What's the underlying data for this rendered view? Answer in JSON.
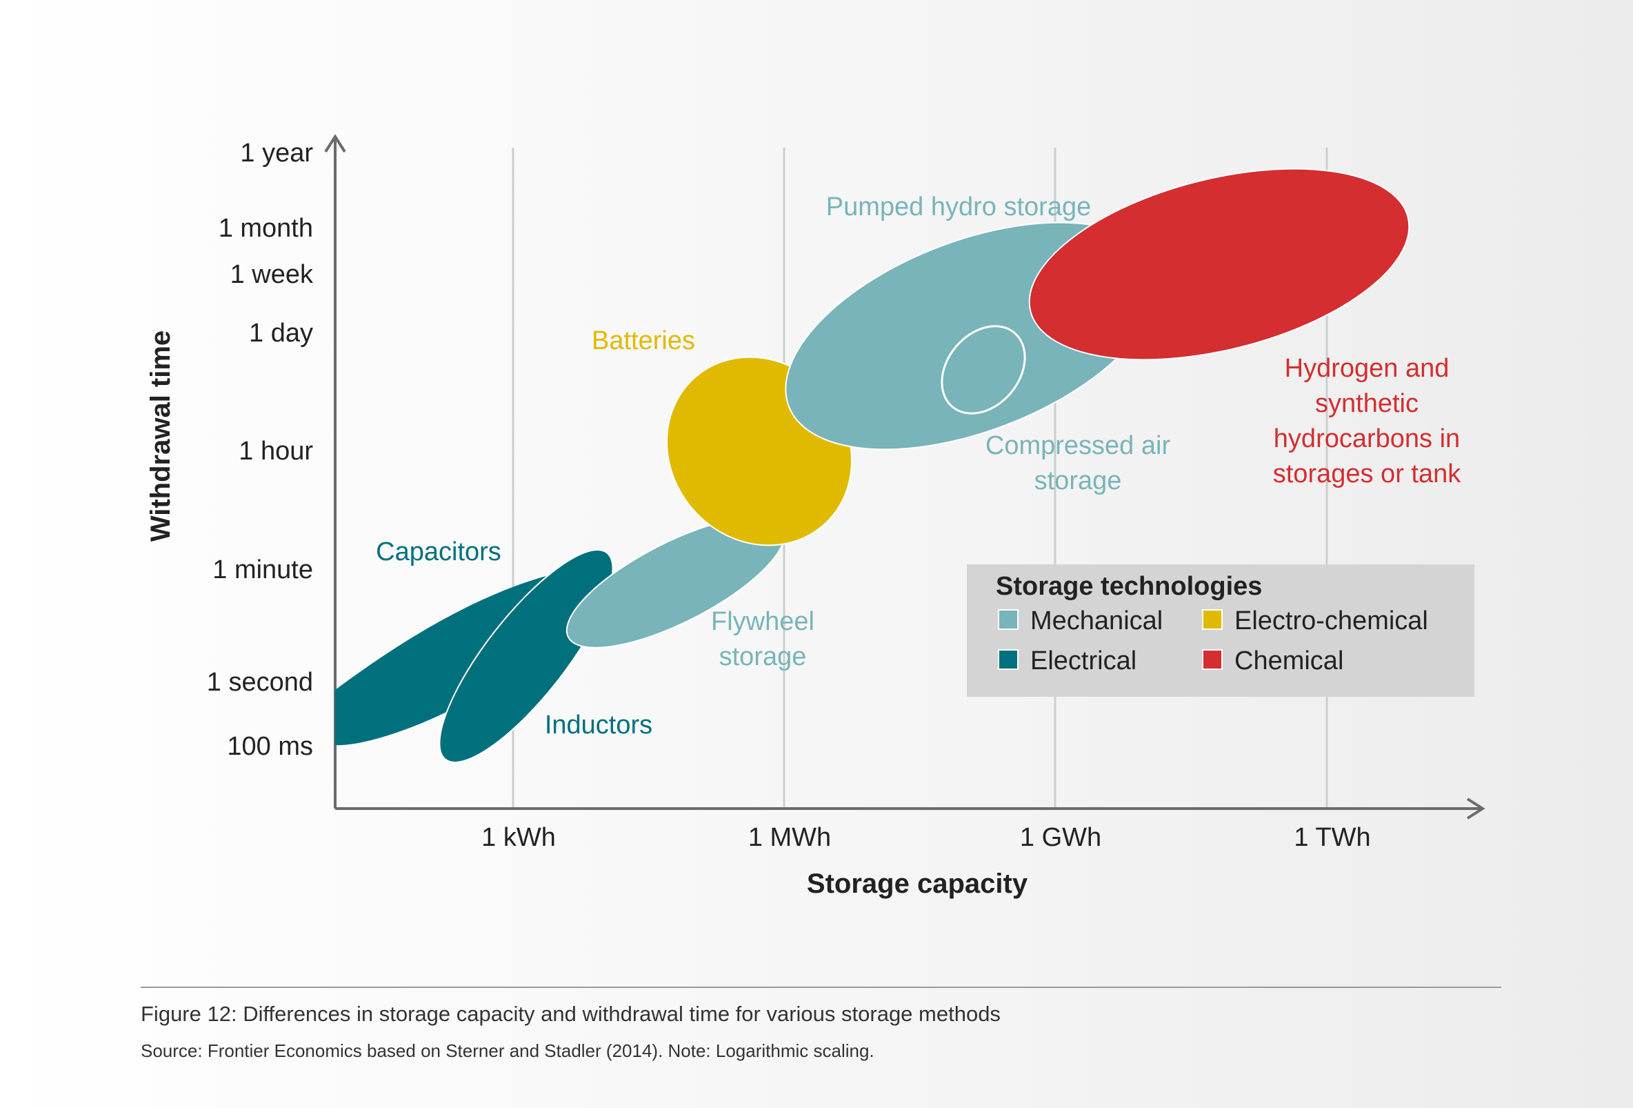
{
  "colors": {
    "mechanical": "#78b4ba",
    "electrical": "#01707d",
    "electro_chemical": "#e0ba00",
    "chemical": "#d42e30",
    "axis": "#6b6b6b",
    "grid": "#c9cfcf",
    "text": "#222222",
    "legend_bg": "#d4d4d4"
  },
  "chart_data": {
    "type": "scatter",
    "subtype": "region-ellipse",
    "xlabel": "Storage capacity",
    "ylabel": "Withdrawal time",
    "x_scale": "log",
    "y_scale": "log",
    "x_ticks": [
      "1 kWh",
      "1 MWh",
      "1 GWh",
      "1 TWh"
    ],
    "y_ticks": [
      "100 ms",
      "1 second",
      "1 minute",
      "1 hour",
      "1 day",
      "1 week",
      "1 month",
      "1 year"
    ],
    "grid": "vertical lines at x ticks",
    "legend": {
      "title": "Storage technologies",
      "placement": "bottom-right",
      "items": [
        {
          "label": "Mechanical",
          "category": "mechanical"
        },
        {
          "label": "Electro-chemical",
          "category": "electro_chemical"
        },
        {
          "label": "Electrical",
          "category": "electrical"
        },
        {
          "label": "Chemical",
          "category": "chemical"
        }
      ]
    },
    "series": [
      {
        "id": "capacitors",
        "category": "electrical",
        "label_lines": [
          "Capacitors"
        ]
      },
      {
        "id": "inductors",
        "category": "electrical",
        "label_lines": [
          "Inductors"
        ]
      },
      {
        "id": "flywheel",
        "category": "mechanical",
        "label_lines": [
          "Flywheel",
          "storage"
        ]
      },
      {
        "id": "batteries",
        "category": "electro_chemical",
        "label_lines": [
          "Batteries"
        ]
      },
      {
        "id": "pumped-hydro",
        "category": "mechanical",
        "label_lines": [
          "Pumped hydro storage"
        ]
      },
      {
        "id": "compressed-air",
        "category": "mechanical",
        "label_lines": [
          "Compressed air",
          "storage"
        ]
      },
      {
        "id": "hydrogen",
        "category": "chemical",
        "label_lines": [
          "Hydrogen and",
          "synthetic",
          "hydrocarbons in",
          "storages or tank"
        ]
      }
    ]
  },
  "caption": {
    "title": "Figure 12: Differences in storage capacity and withdrawal time for various storage methods",
    "source": "Source: Frontier Economics based on Sterner and Stadler (2014). Note: Logarithmic scaling."
  }
}
